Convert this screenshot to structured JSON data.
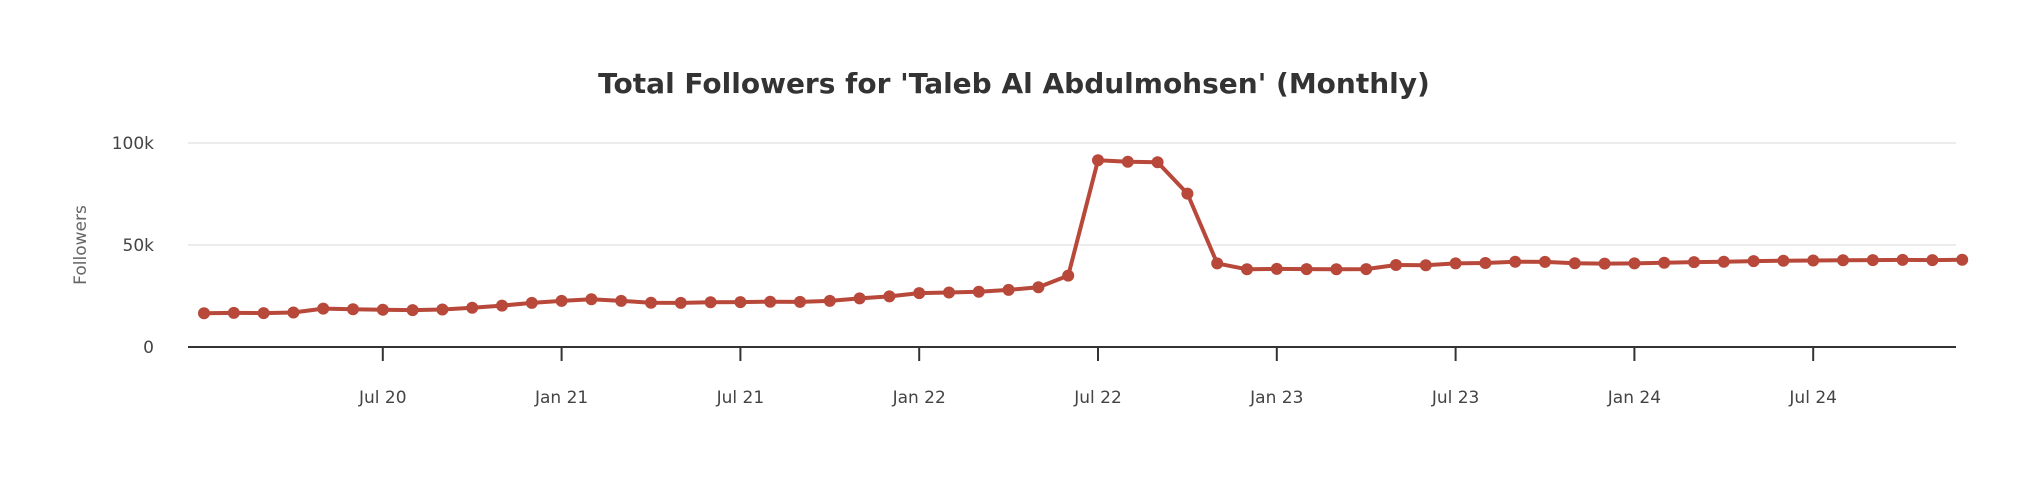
{
  "chart_data": {
    "type": "line",
    "title": "Total Followers for 'Taleb Al Abdulmohsen' (Monthly)",
    "xlabel": "",
    "ylabel": "Followers",
    "ylim": [
      0,
      100000
    ],
    "y_ticks": [
      {
        "value": 0,
        "label": "0"
      },
      {
        "value": 50000,
        "label": "50k"
      },
      {
        "value": 100000,
        "label": "100k"
      }
    ],
    "x_ticks": [
      {
        "date": "2020-07",
        "label": "Jul 20"
      },
      {
        "date": "2021-01",
        "label": "Jan 21"
      },
      {
        "date": "2021-07",
        "label": "Jul 21"
      },
      {
        "date": "2022-01",
        "label": "Jan 22"
      },
      {
        "date": "2022-07",
        "label": "Jul 22"
      },
      {
        "date": "2023-01",
        "label": "Jan 23"
      },
      {
        "date": "2023-07",
        "label": "Jul 23"
      },
      {
        "date": "2024-01",
        "label": "Jan 24"
      },
      {
        "date": "2024-07",
        "label": "Jul 24"
      }
    ],
    "grid": true,
    "legend": false,
    "color": "#b7483a",
    "x": [
      "2020-01",
      "2020-02",
      "2020-03",
      "2020-04",
      "2020-05",
      "2020-06",
      "2020-07",
      "2020-08",
      "2020-09",
      "2020-10",
      "2020-11",
      "2020-12",
      "2021-01",
      "2021-02",
      "2021-03",
      "2021-04",
      "2021-05",
      "2021-06",
      "2021-07",
      "2021-08",
      "2021-09",
      "2021-10",
      "2021-11",
      "2021-12",
      "2022-01",
      "2022-02",
      "2022-03",
      "2022-04",
      "2022-05",
      "2022-06",
      "2022-07",
      "2022-08",
      "2022-09",
      "2022-10",
      "2022-11",
      "2022-12",
      "2023-01",
      "2023-02",
      "2023-03",
      "2023-04",
      "2023-05",
      "2023-06",
      "2023-07",
      "2023-08",
      "2023-09",
      "2023-10",
      "2023-11",
      "2023-12",
      "2024-01",
      "2024-02",
      "2024-03",
      "2024-04",
      "2024-05",
      "2024-06",
      "2024-07",
      "2024-08",
      "2024-09",
      "2024-10",
      "2024-11",
      "2024-12"
    ],
    "series": [
      {
        "values": [
          16500,
          16700,
          16600,
          16900,
          18800,
          18500,
          18300,
          18100,
          18400,
          19200,
          20300,
          21600,
          22600,
          23400,
          22600,
          21700,
          21600,
          21900,
          22000,
          22200,
          22100,
          22600,
          23800,
          24800,
          26400,
          26700,
          27100,
          28000,
          29300,
          35000,
          91500,
          90800,
          90600,
          75200,
          41000,
          38100,
          38300,
          38200,
          38100,
          38200,
          40200,
          40100,
          41000,
          41200,
          41800,
          41700,
          41100,
          40900,
          41000,
          41300,
          41600,
          41800,
          42100,
          42300,
          42400,
          42500,
          42600,
          42700,
          42600,
          42800
        ]
      }
    ]
  }
}
